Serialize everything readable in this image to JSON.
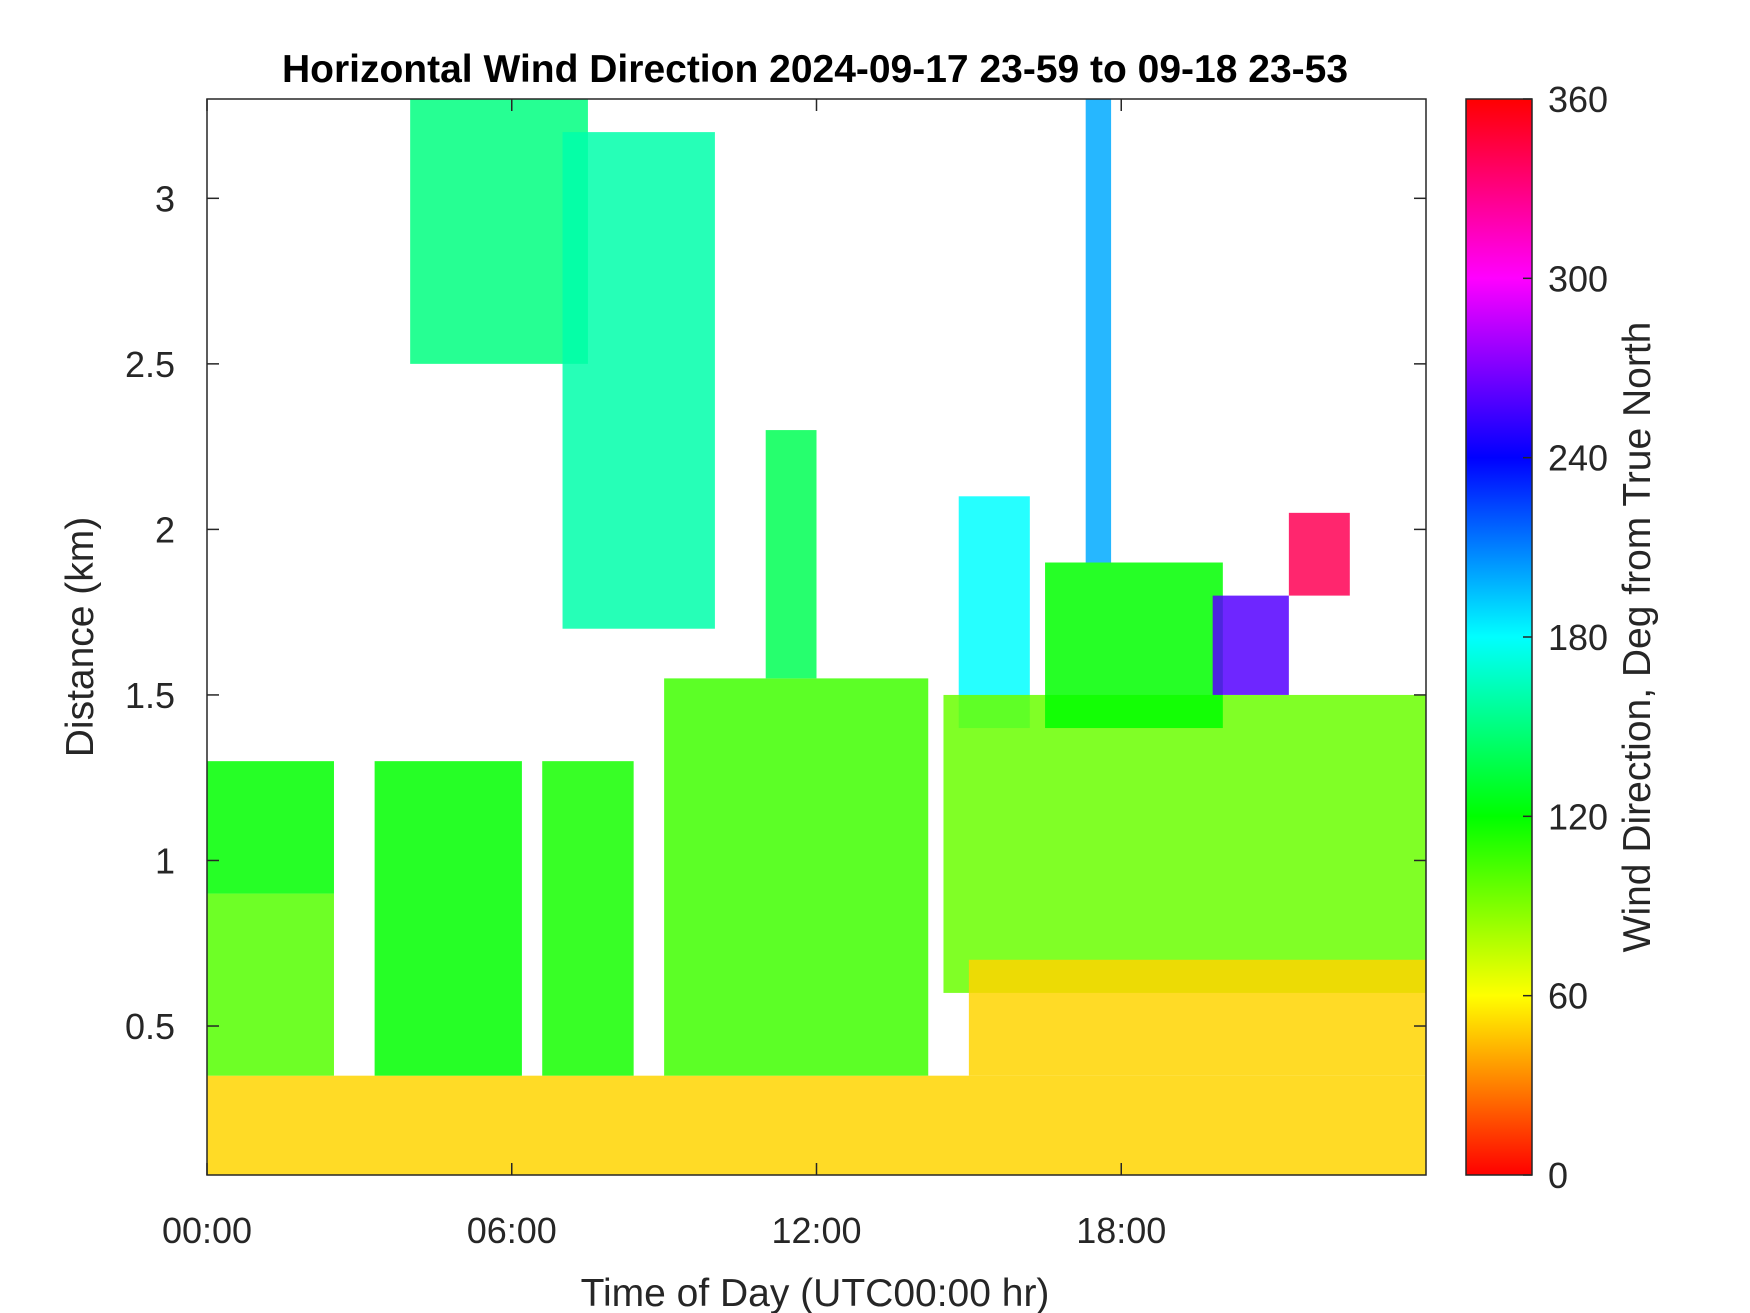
{
  "chart_data": {
    "type": "heatmap",
    "title": "Horizontal Wind Direction 2024-09-17 23-59 to 09-18 23-53",
    "xlabel": "Time of Day (UTC00:00 hr)",
    "ylabel": "Distance (km)",
    "xlim": [
      0,
      24
    ],
    "ylim": [
      0.05,
      3.3
    ],
    "x_ticks": [
      {
        "value": 0,
        "label": "00:00"
      },
      {
        "value": 6,
        "label": "06:00"
      },
      {
        "value": 12,
        "label": "12:00"
      },
      {
        "value": 18,
        "label": "18:00"
      }
    ],
    "y_ticks": [
      {
        "value": 0.5,
        "label": "0.5"
      },
      {
        "value": 1,
        "label": "1"
      },
      {
        "value": 1.5,
        "label": "1.5"
      },
      {
        "value": 2,
        "label": "2"
      },
      {
        "value": 2.5,
        "label": "2.5"
      },
      {
        "value": 3,
        "label": "3"
      }
    ],
    "colorbar": {
      "label": "Wind Direction, Deg from True North",
      "range": [
        0,
        360
      ],
      "ticks": [
        {
          "value": 0,
          "label": "0"
        },
        {
          "value": 60,
          "label": "60"
        },
        {
          "value": 120,
          "label": "120"
        },
        {
          "value": 180,
          "label": "180"
        },
        {
          "value": 240,
          "label": "240"
        },
        {
          "value": 300,
          "label": "300"
        },
        {
          "value": 360,
          "label": "360"
        }
      ],
      "colormap": "hsv"
    },
    "grid": false,
    "layers": [
      {
        "t0": 0,
        "t1": 24,
        "z0": 0.05,
        "z1": 0.35,
        "direction": 50
      },
      {
        "t0": 0,
        "t1": 2.5,
        "z0": 0.35,
        "z1": 0.9,
        "direction": 100
      },
      {
        "t0": 0,
        "t1": 2.5,
        "z0": 0.9,
        "z1": 1.3,
        "direction": 120
      },
      {
        "t0": 3.3,
        "t1": 6.2,
        "z0": 0.35,
        "z1": 1.3,
        "direction": 120
      },
      {
        "t0": 6.6,
        "t1": 8.4,
        "z0": 0.35,
        "z1": 1.3,
        "direction": 115
      },
      {
        "t0": 9,
        "t1": 14.2,
        "z0": 0.35,
        "z1": 1.55,
        "direction": 105
      },
      {
        "t0": 11,
        "t1": 12,
        "z0": 1.55,
        "z1": 2.3,
        "direction": 140
      },
      {
        "t0": 14.8,
        "t1": 16.2,
        "z0": 1.4,
        "z1": 2.1,
        "direction": 180
      },
      {
        "t0": 14.5,
        "t1": 24,
        "z0": 0.6,
        "z1": 1.5,
        "direction": 95
      },
      {
        "t0": 15,
        "t1": 24,
        "z0": 0.35,
        "z1": 0.7,
        "direction": 50
      },
      {
        "t0": 16.5,
        "t1": 20,
        "z0": 1.4,
        "z1": 1.9,
        "direction": 120
      },
      {
        "t0": 19.8,
        "t1": 21.3,
        "z0": 1.5,
        "z1": 1.8,
        "direction": 260
      },
      {
        "t0": 21.3,
        "t1": 22.5,
        "z0": 1.8,
        "z1": 2.05,
        "direction": 340
      },
      {
        "t0": 4,
        "t1": 7.5,
        "z0": 2.5,
        "z1": 3.3,
        "direction": 150
      },
      {
        "t0": 7,
        "t1": 10,
        "z0": 1.7,
        "z1": 3.2,
        "direction": 160
      },
      {
        "t0": 17.3,
        "t1": 17.8,
        "z0": 1.9,
        "z1": 3.3,
        "direction": 200
      }
    ]
  }
}
